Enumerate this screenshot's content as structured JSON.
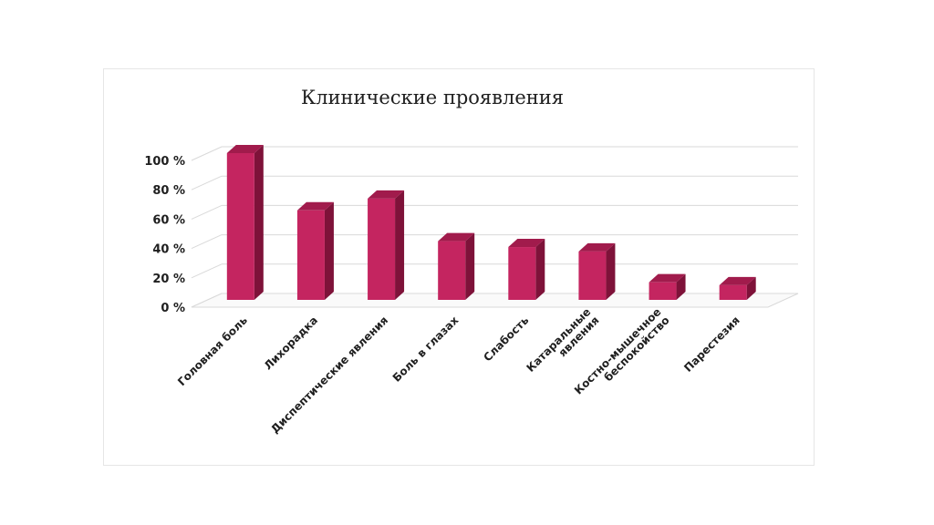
{
  "chart_data": {
    "type": "bar",
    "title": "Клинические проявления",
    "xlabel": "",
    "ylabel": "",
    "categories": [
      [
        "Головная боль"
      ],
      [
        "Лихорадка"
      ],
      [
        "Диспептические явления"
      ],
      [
        "Боль в глазах"
      ],
      [
        "Слабость"
      ],
      [
        "Катаральные",
        "явления"
      ],
      [
        "Костно-мышечное",
        "беспокойство"
      ],
      [
        "Парестезия"
      ]
    ],
    "values": [
      100,
      61,
      69,
      40,
      36,
      33,
      12,
      10
    ],
    "ylim": [
      0,
      100
    ],
    "yticks": [
      "0 %",
      "20 %",
      "40 %",
      "60 %",
      "80 %",
      "100 %"
    ],
    "grid": true,
    "legend": "none",
    "style": "3d-column",
    "colors": {
      "bar_front": "#c42560",
      "bar_side": "#7e1239",
      "bar_top": "#a11b4c",
      "grid": "#d9d9d9"
    }
  }
}
